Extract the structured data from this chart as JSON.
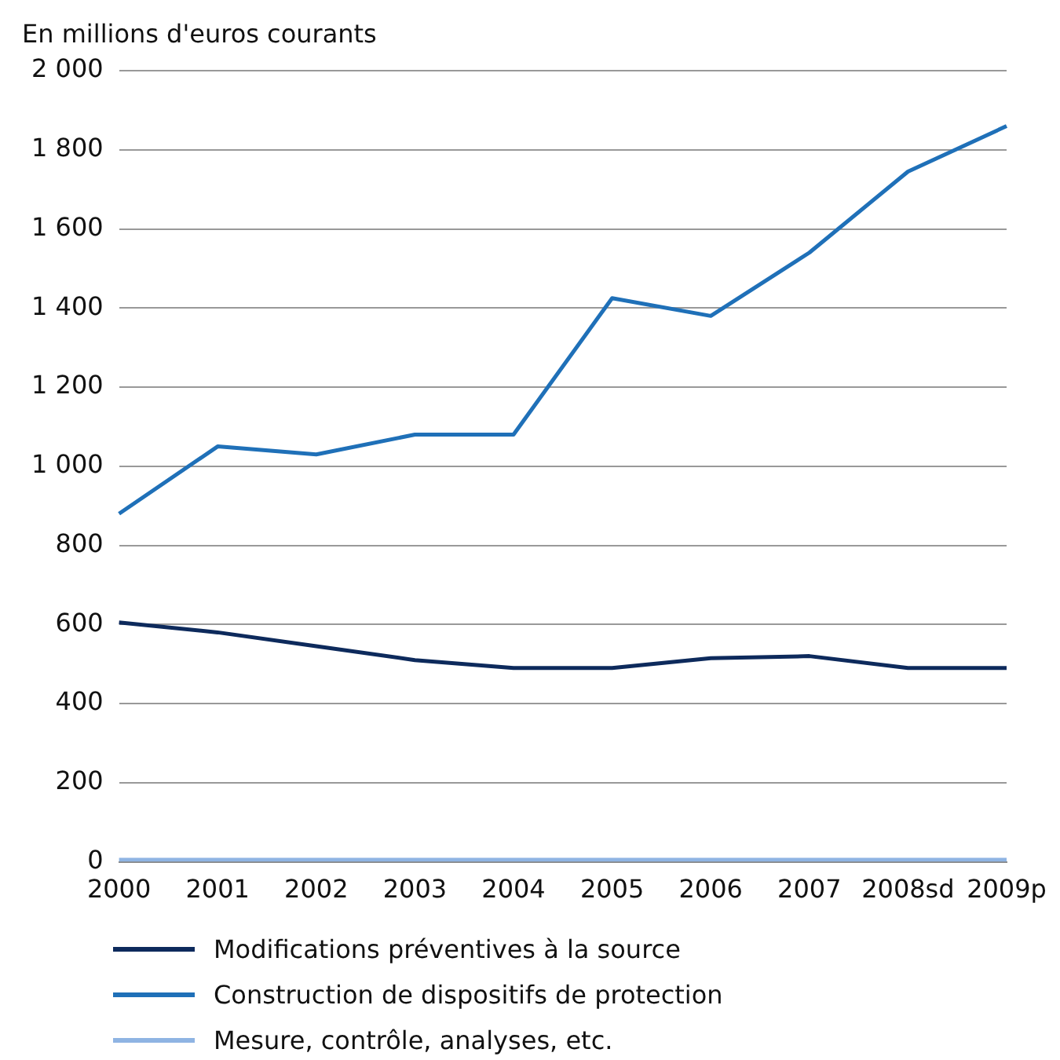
{
  "chart_data": {
    "type": "line",
    "ylabel": "En millions d'euros courants",
    "categories": [
      "2000",
      "2001",
      "2002",
      "2003",
      "2004",
      "2005",
      "2006",
      "2007",
      "2008sd",
      "2009p"
    ],
    "series": [
      {
        "name": "Modifications préventives à la source",
        "color": "#0d2a5c",
        "values": [
          605,
          580,
          545,
          510,
          490,
          490,
          515,
          520,
          490,
          490
        ]
      },
      {
        "name": "Construction de dispositifs de protection",
        "color": "#1f70b8",
        "values": [
          880,
          1050,
          1030,
          1080,
          1080,
          1425,
          1380,
          1540,
          1745,
          1860
        ]
      },
      {
        "name": "Mesure, contrôle, analyses, etc.",
        "color": "#8fb4e3",
        "values": [
          5,
          5,
          5,
          5,
          5,
          5,
          5,
          5,
          5,
          5
        ]
      }
    ],
    "ylim": [
      0,
      2000
    ],
    "yticks": [
      0,
      {
        "value": 200,
        "label": "200"
      },
      {
        "value": 400,
        "label": "400"
      },
      {
        "value": 600,
        "label": "600"
      },
      {
        "value": 800,
        "label": "800"
      },
      {
        "value": 1000,
        "label": "1 000"
      },
      {
        "value": 1200,
        "label": "1 200"
      },
      {
        "value": 1400,
        "label": "1 400"
      },
      {
        "value": 1600,
        "label": "1 600"
      },
      {
        "value": 1800,
        "label": "1 800"
      },
      {
        "value": 2000,
        "label": "2 000"
      }
    ],
    "grid": "y",
    "legend": "bottom",
    "marker": "none",
    "line_style": "solid"
  }
}
